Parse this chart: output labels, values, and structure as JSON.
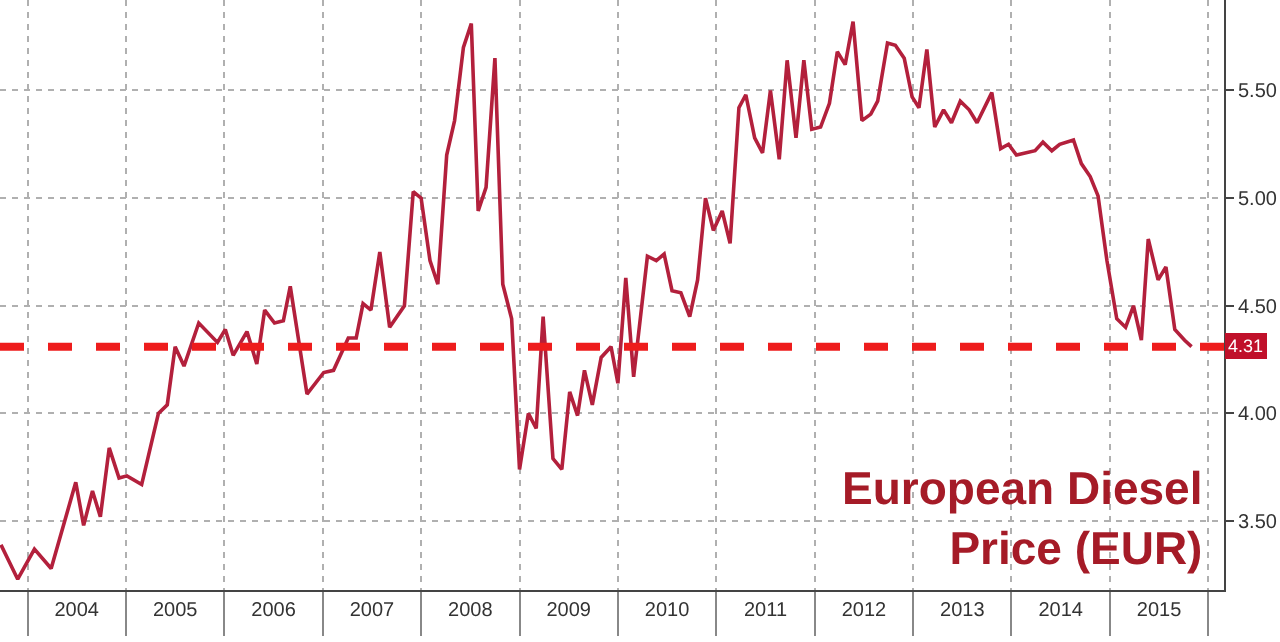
{
  "chart_data": {
    "type": "line",
    "annotations": [
      "European Diesel\nPrice (EUR)"
    ],
    "series": [
      {
        "color": "#b3203c",
        "x": [
          2003.73,
          2003.9,
          2004.07,
          2004.24,
          2004.49,
          2004.57,
          2004.66,
          2004.74,
          2004.83,
          2004.93,
          2005.01,
          2005.16,
          2005.33,
          2005.42,
          2005.5,
          2005.59,
          2005.74,
          2005.93,
          2006.01,
          2006.09,
          2006.23,
          2006.33,
          2006.41,
          2006.51,
          2006.6,
          2006.67,
          2006.84,
          2007.01,
          2007.11,
          2007.26,
          2007.34,
          2007.41,
          2007.49,
          2007.58,
          2007.68,
          2007.83,
          2007.92,
          2008.0,
          2008.09,
          2008.17,
          2008.26,
          2008.34,
          2008.43,
          2008.51,
          2008.58,
          2008.66,
          2008.75,
          2008.83,
          2008.92,
          2009.0,
          2009.09,
          2009.17,
          2009.24,
          2009.34,
          2009.43,
          2009.51,
          2009.59,
          2009.66,
          2009.74,
          2009.83,
          2009.93,
          2010.0,
          2010.08,
          2010.16,
          2010.2,
          2010.3,
          2010.39,
          2010.47,
          2010.55,
          2010.64,
          2010.73,
          2010.81,
          2010.89,
          2010.97,
          2011.06,
          2011.14,
          2011.23,
          2011.3,
          2011.39,
          2011.47,
          2011.55,
          2011.64,
          2011.72,
          2011.81,
          2011.89,
          2011.97,
          2012.06,
          2012.15,
          2012.23,
          2012.31,
          2012.39,
          2012.48,
          2012.57,
          2012.64,
          2012.74,
          2012.82,
          2012.91,
          2012.99,
          2013.06,
          2013.14,
          2013.22,
          2013.31,
          2013.39,
          2013.48,
          2013.57,
          2013.65,
          2013.8,
          2013.89,
          2013.97,
          2014.05,
          2014.24,
          2014.32,
          2014.41,
          2014.49,
          2014.63,
          2014.71,
          2014.8,
          2014.88,
          2014.97,
          2015.07,
          2015.16,
          2015.24,
          2015.32,
          2015.39,
          2015.49,
          2015.57,
          2015.66,
          2015.76,
          2015.83
        ],
        "values": [
          3.39,
          3.23,
          3.37,
          3.28,
          3.68,
          3.48,
          3.64,
          3.52,
          3.84,
          3.7,
          3.71,
          3.67,
          4.0,
          4.04,
          4.31,
          4.22,
          4.42,
          4.33,
          4.39,
          4.27,
          4.38,
          4.23,
          4.48,
          4.42,
          4.43,
          4.59,
          4.09,
          4.19,
          4.2,
          4.35,
          4.35,
          4.51,
          4.48,
          4.75,
          4.4,
          4.5,
          5.03,
          5.0,
          4.71,
          4.6,
          5.2,
          5.36,
          5.7,
          5.81,
          4.94,
          5.05,
          5.65,
          4.6,
          4.44,
          3.74,
          4.0,
          3.93,
          4.45,
          3.79,
          3.74,
          4.1,
          3.99,
          4.2,
          4.04,
          4.26,
          4.31,
          4.14,
          4.63,
          4.17,
          4.33,
          4.73,
          4.71,
          4.74,
          4.57,
          4.56,
          4.45,
          4.62,
          5.0,
          4.85,
          4.94,
          4.79,
          5.42,
          5.48,
          5.28,
          5.21,
          5.5,
          5.18,
          5.64,
          5.28,
          5.64,
          5.32,
          5.33,
          5.44,
          5.68,
          5.62,
          5.82,
          5.36,
          5.39,
          5.45,
          5.72,
          5.71,
          5.65,
          5.47,
          5.42,
          5.69,
          5.33,
          5.41,
          5.35,
          5.45,
          5.41,
          5.35,
          5.49,
          5.23,
          5.25,
          5.2,
          5.22,
          5.26,
          5.22,
          5.25,
          5.27,
          5.16,
          5.1,
          5.01,
          4.71,
          4.44,
          4.4,
          4.5,
          4.34,
          4.81,
          4.62,
          4.68,
          4.39,
          4.34,
          4.31
        ]
      }
    ],
    "xlim": [
      2003.72,
      2016.16
    ],
    "xticks": [
      {
        "value": 2004,
        "label": null
      },
      {
        "value": 2004.5,
        "label": "2004"
      },
      {
        "value": 2005,
        "label": null
      },
      {
        "value": 2005.5,
        "label": "2005"
      },
      {
        "value": 2006,
        "label": null
      },
      {
        "value": 2006.5,
        "label": "2006"
      },
      {
        "value": 2007,
        "label": null
      },
      {
        "value": 2007.5,
        "label": "2007"
      },
      {
        "value": 2008,
        "label": null
      },
      {
        "value": 2008.5,
        "label": "2008"
      },
      {
        "value": 2009,
        "label": null
      },
      {
        "value": 2009.5,
        "label": "2009"
      },
      {
        "value": 2010,
        "label": null
      },
      {
        "value": 2010.5,
        "label": "2010"
      },
      {
        "value": 2011,
        "label": null
      },
      {
        "value": 2011.5,
        "label": "2011"
      },
      {
        "value": 2012,
        "label": null
      },
      {
        "value": 2012.5,
        "label": "2012"
      },
      {
        "value": 2013,
        "label": null
      },
      {
        "value": 2013.5,
        "label": "2013"
      },
      {
        "value": 2014,
        "label": null
      },
      {
        "value": 2014.5,
        "label": "2014"
      },
      {
        "value": 2015,
        "label": null
      },
      {
        "value": 2015.5,
        "label": "2015"
      },
      {
        "value": 2016,
        "label": null
      }
    ],
    "ylim": [
      3.18,
      5.92
    ],
    "yticks": [
      {
        "value": 3.5,
        "label": "3.50"
      },
      {
        "value": 4.0,
        "label": "4.00"
      },
      {
        "value": 4.5,
        "label": "4.50"
      },
      {
        "value": 5.0,
        "label": "5.00"
      },
      {
        "value": 5.5,
        "label": "5.50"
      }
    ],
    "ref_lines": [
      {
        "axis": "y",
        "value": 4.31,
        "label": "4.31",
        "color": "#ee1c1c",
        "line_style": "dashed"
      }
    ],
    "grid": true,
    "marker": "none",
    "line_style": "solid"
  }
}
